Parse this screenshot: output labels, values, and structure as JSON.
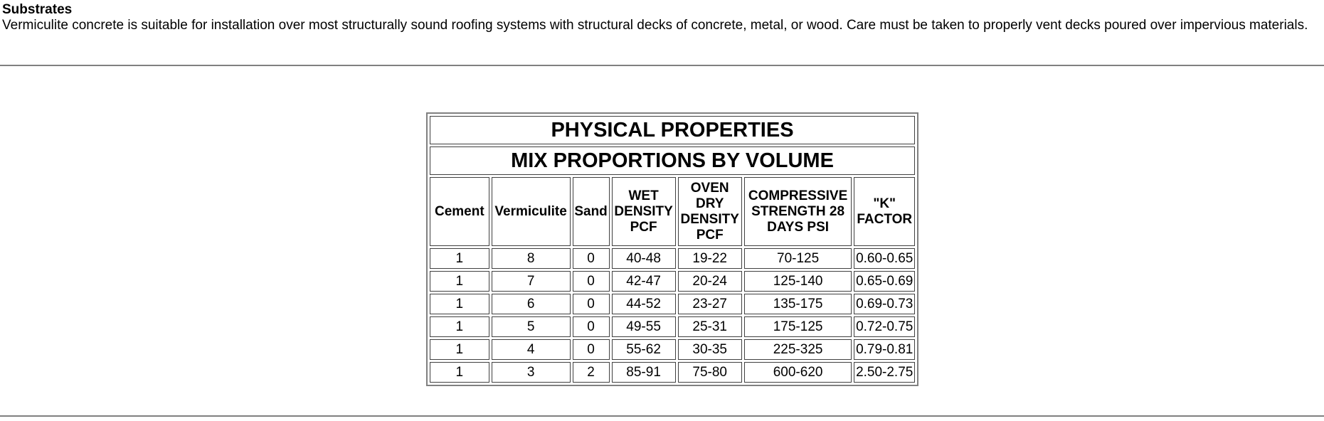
{
  "section": {
    "heading": "Substrates",
    "body": "Vermiculite concrete is suitable for installation over most structurally sound roofing systems with structural decks of concrete, metal, or wood. Care must be taken to properly vent decks poured over impervious materials."
  },
  "table": {
    "title": "PHYSICAL PROPERTIES",
    "subtitle": "MIX PROPORTIONS BY VOLUME",
    "headers": [
      "Cement",
      "Vermiculite",
      "Sand",
      "WET DENSITY PCF",
      "OVEN DRY DENSITY PCF",
      "COMPRESSIVE STRENGTH 28 DAYS PSI",
      "\"K\" FACTOR"
    ],
    "rows": [
      [
        "1",
        "8",
        "0",
        "40-48",
        "19-22",
        "70-125",
        "0.60-0.65"
      ],
      [
        "1",
        "7",
        "0",
        "42-47",
        "20-24",
        "125-140",
        "0.65-0.69"
      ],
      [
        "1",
        "6",
        "0",
        "44-52",
        "23-27",
        "135-175",
        "0.69-0.73"
      ],
      [
        "1",
        "5",
        "0",
        "49-55",
        "25-31",
        "175-125",
        "0.72-0.75"
      ],
      [
        "1",
        "4",
        "0",
        "55-62",
        "30-35",
        "225-325",
        "0.79-0.81"
      ],
      [
        "1",
        "3",
        "2",
        "85-91",
        "75-80",
        "600-620",
        "2.50-2.75"
      ]
    ]
  }
}
